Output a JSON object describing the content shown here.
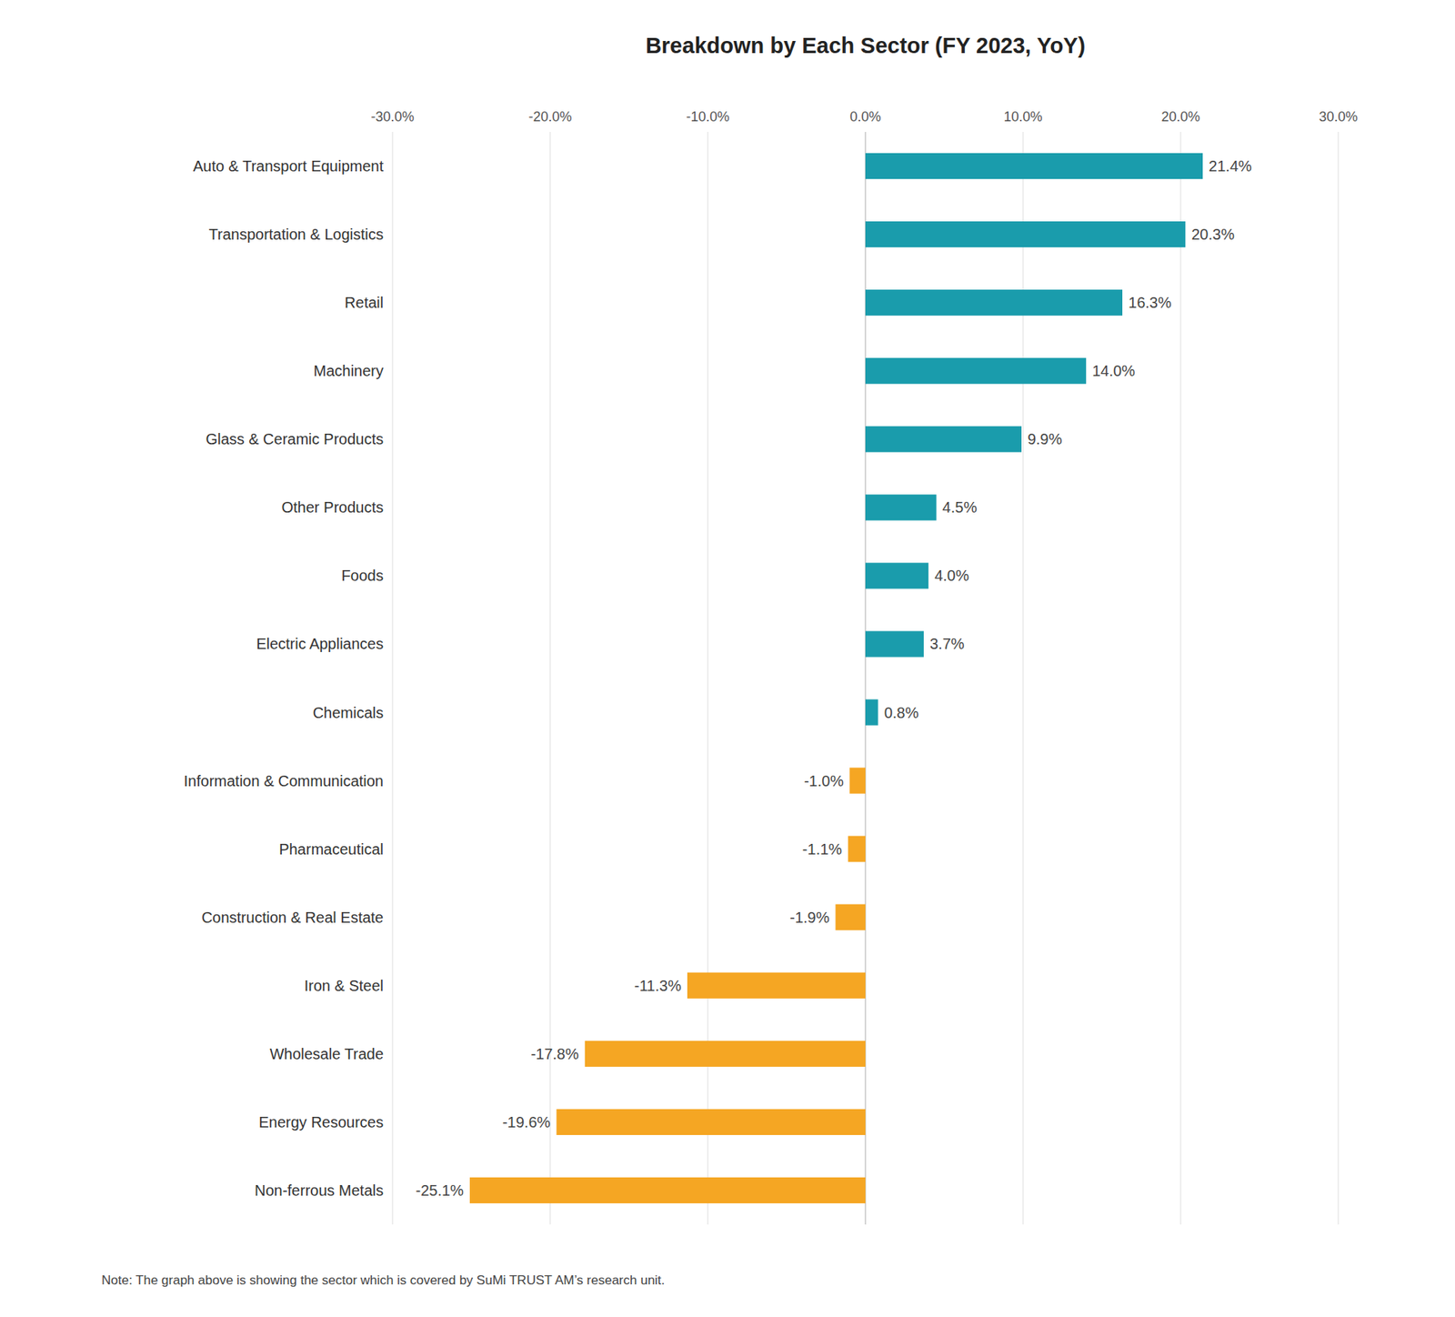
{
  "chart_data": {
    "type": "bar",
    "orientation": "horizontal",
    "title": "Breakdown by Each Sector (FY 2023, YoY)",
    "categories": [
      "Auto & Transport Equipment",
      "Transportation & Logistics",
      "Retail",
      "Machinery",
      "Glass & Ceramic Products",
      "Other Products",
      "Foods",
      "Electric Appliances",
      "Chemicals",
      "Information & Communication",
      "Pharmaceutical",
      "Construction & Real Estate",
      "Iron & Steel",
      "Wholesale Trade",
      "Energy Resources",
      "Non-ferrous Metals"
    ],
    "values": [
      21.4,
      20.3,
      16.3,
      14.0,
      9.9,
      4.5,
      4.0,
      3.7,
      0.8,
      -1.0,
      -1.1,
      -1.9,
      -11.3,
      -17.8,
      -19.6,
      -25.1
    ],
    "value_labels": [
      "21.4%",
      "20.3%",
      "16.3%",
      "14.0%",
      "9.9%",
      "4.5%",
      "4.0%",
      "3.7%",
      "0.8%",
      "-1.0%",
      "-1.1%",
      "-1.9%",
      "-11.3%",
      "-17.8%",
      "-19.6%",
      "-25.1%"
    ],
    "colors": [
      "#1a9cac",
      "#1a9cac",
      "#1a9cac",
      "#1a9cac",
      "#1a9cac",
      "#1a9cac",
      "#1a9cac",
      "#1a9cac",
      "#1a9cac",
      "#f5a623",
      "#f5a623",
      "#f5a623",
      "#f5a623",
      "#f5a623",
      "#f5a623",
      "#f5a623"
    ],
    "data_labels": true,
    "xlim": [
      -30,
      30
    ],
    "xticks": [
      {
        "value": -30,
        "label": "-30.0%"
      },
      {
        "value": -20,
        "label": "-20.0%"
      },
      {
        "value": -10,
        "label": "-10.0%"
      },
      {
        "value": 0,
        "label": "0.0%"
      },
      {
        "value": 10,
        "label": "10.0%"
      },
      {
        "value": 20,
        "label": "20.0%"
      },
      {
        "value": 30,
        "label": "30.0%"
      }
    ],
    "grid": true,
    "annotations": [
      "Note: The graph above is showing the sector which is covered by SuMi TRUST AM’s research unit."
    ]
  }
}
